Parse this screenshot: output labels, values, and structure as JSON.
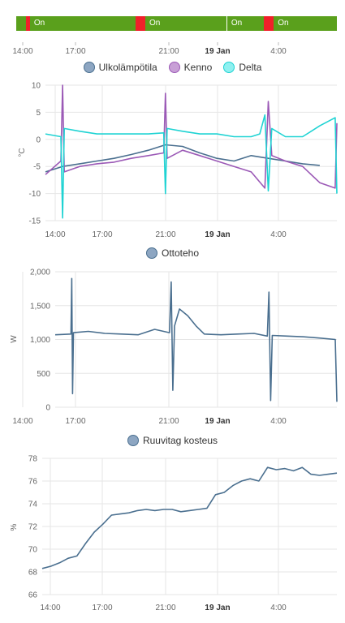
{
  "timeline": {
    "segments": [
      {
        "state": "on",
        "label": "",
        "frac": 0.03,
        "color": "#5aa01c"
      },
      {
        "state": "off",
        "label": "",
        "frac": 0.012,
        "color": "#f0202a"
      },
      {
        "state": "on",
        "label": "On",
        "frac": 0.33,
        "color": "#5aa01c"
      },
      {
        "state": "off",
        "label": "",
        "frac": 0.03,
        "color": "#f0202a"
      },
      {
        "state": "on",
        "label": "On",
        "frac": 0.253,
        "color": "#5aa01c"
      },
      {
        "state": "on",
        "label": "On",
        "frac": 0.118,
        "color": "#5aa01c"
      },
      {
        "state": "off",
        "label": "",
        "frac": 0.03,
        "color": "#f0202a"
      },
      {
        "state": "on",
        "label": "On",
        "frac": 0.197,
        "color": "#5aa01c"
      }
    ],
    "x_ticks": [
      "14:00",
      "17:00",
      "21:00",
      "19 Jan",
      "4:00"
    ]
  },
  "chart_data": [
    {
      "type": "line",
      "legend": [
        "Ulkolämpötila",
        "Kenno",
        "Delta"
      ],
      "ylabel": "°C",
      "ylim": [
        -15,
        10
      ],
      "y_ticks": [
        "10",
        "5",
        "0",
        "-5",
        "-10",
        "-15"
      ],
      "x_ticks": [
        "14:00",
        "17:00",
        "21:00",
        "19 Jan",
        "4:00"
      ],
      "series": [
        {
          "name": "Ulkolämpötila",
          "color": "#4a6f8f",
          "x": [
            0,
            1,
            2,
            3,
            4,
            5,
            6,
            7,
            8,
            9,
            10,
            11,
            12,
            13,
            14,
            15,
            16
          ],
          "values": [
            -6,
            -5,
            -4.5,
            -4,
            -3.5,
            -2.8,
            -2,
            -1,
            -1.3,
            -2.5,
            -3.5,
            -4,
            -3,
            -3.5,
            -4,
            -4.5,
            -4.8
          ]
        },
        {
          "name": "Kenno",
          "color": "#9b59b6",
          "x": [
            0,
            0.9,
            1,
            1.1,
            2,
            3,
            4,
            5,
            6,
            6.9,
            7,
            7.1,
            8,
            9,
            10,
            11,
            12,
            12.8,
            13,
            13.2,
            14,
            15,
            16,
            16.9,
            17
          ],
          "values": [
            -6.5,
            -4,
            10,
            -6,
            -5,
            -4.5,
            -4.2,
            -3.5,
            -3,
            -2.5,
            8.5,
            -3.5,
            -2,
            -3,
            -4,
            -5,
            -6,
            -9,
            7,
            -3,
            -4,
            -5,
            -8,
            -9,
            3
          ]
        },
        {
          "name": "Delta",
          "color": "#1fd3d3",
          "x": [
            0,
            0.9,
            1,
            1.1,
            2,
            3,
            4,
            5,
            6,
            6.9,
            7,
            7.1,
            8,
            9,
            10,
            11,
            12,
            12.5,
            12.8,
            13,
            13.2,
            14,
            15,
            16,
            16.9,
            17
          ],
          "values": [
            1,
            0.5,
            -14.5,
            2,
            1.5,
            1,
            1,
            1,
            1,
            1.2,
            -10,
            2,
            1.5,
            1,
            1,
            0.5,
            0.5,
            1,
            4.5,
            -9.5,
            2,
            0.5,
            0.5,
            2.5,
            4,
            -10
          ]
        }
      ]
    },
    {
      "type": "line",
      "legend": [
        "Ottoteho"
      ],
      "ylabel": "W",
      "ylim": [
        0,
        2000
      ],
      "y_ticks": [
        "2,000",
        "1,500",
        "1,000",
        "500",
        "0"
      ],
      "x_ticks": [
        "14:00",
        "17:00",
        "21:00",
        "19 Jan",
        "4:00"
      ],
      "series": [
        {
          "name": "Ottoteho",
          "color": "#4a6f8f",
          "x": [
            0,
            0.95,
            1,
            1.05,
            1.1,
            2,
            3,
            4,
            5,
            6,
            6.9,
            7,
            7.1,
            7.2,
            7.5,
            8,
            8.5,
            9,
            10,
            11,
            12,
            12.8,
            12.9,
            13,
            13.1,
            14,
            15,
            16,
            16.9,
            17
          ],
          "values": [
            1070,
            1080,
            1900,
            200,
            1100,
            1120,
            1090,
            1080,
            1070,
            1150,
            1100,
            1850,
            250,
            1200,
            1450,
            1350,
            1200,
            1080,
            1070,
            1080,
            1090,
            1050,
            1700,
            100,
            1060,
            1050,
            1040,
            1020,
            1000,
            80
          ]
        }
      ]
    },
    {
      "type": "line",
      "legend": [
        "Ruuvitag kosteus"
      ],
      "ylabel": "%",
      "ylim": [
        66,
        78
      ],
      "y_ticks": [
        "78",
        "76",
        "74",
        "72",
        "70",
        "68",
        "66"
      ],
      "x_ticks": [
        "14:00",
        "17:00",
        "21:00",
        "19 Jan",
        "4:00"
      ],
      "series": [
        {
          "name": "Ruuvitag kosteus",
          "color": "#4a6f8f",
          "x": [
            0,
            0.5,
            1,
            1.5,
            2,
            2.5,
            3,
            3.5,
            4,
            4.5,
            5,
            5.5,
            6,
            6.5,
            7,
            7.5,
            8,
            8.5,
            9,
            9.5,
            10,
            10.5,
            11,
            11.5,
            12,
            12.5,
            13,
            13.5,
            14,
            14.5,
            15,
            15.5,
            16,
            16.5,
            17
          ],
          "values": [
            68.3,
            68.5,
            68.8,
            69.2,
            69.4,
            70.5,
            71.5,
            72.2,
            73,
            73.1,
            73.2,
            73.4,
            73.5,
            73.4,
            73.5,
            73.5,
            73.3,
            73.4,
            73.5,
            73.6,
            74.8,
            75,
            75.6,
            76,
            76.2,
            76,
            77.2,
            77,
            77.1,
            76.9,
            77.2,
            76.6,
            76.5,
            76.6,
            76.7
          ]
        }
      ]
    }
  ]
}
